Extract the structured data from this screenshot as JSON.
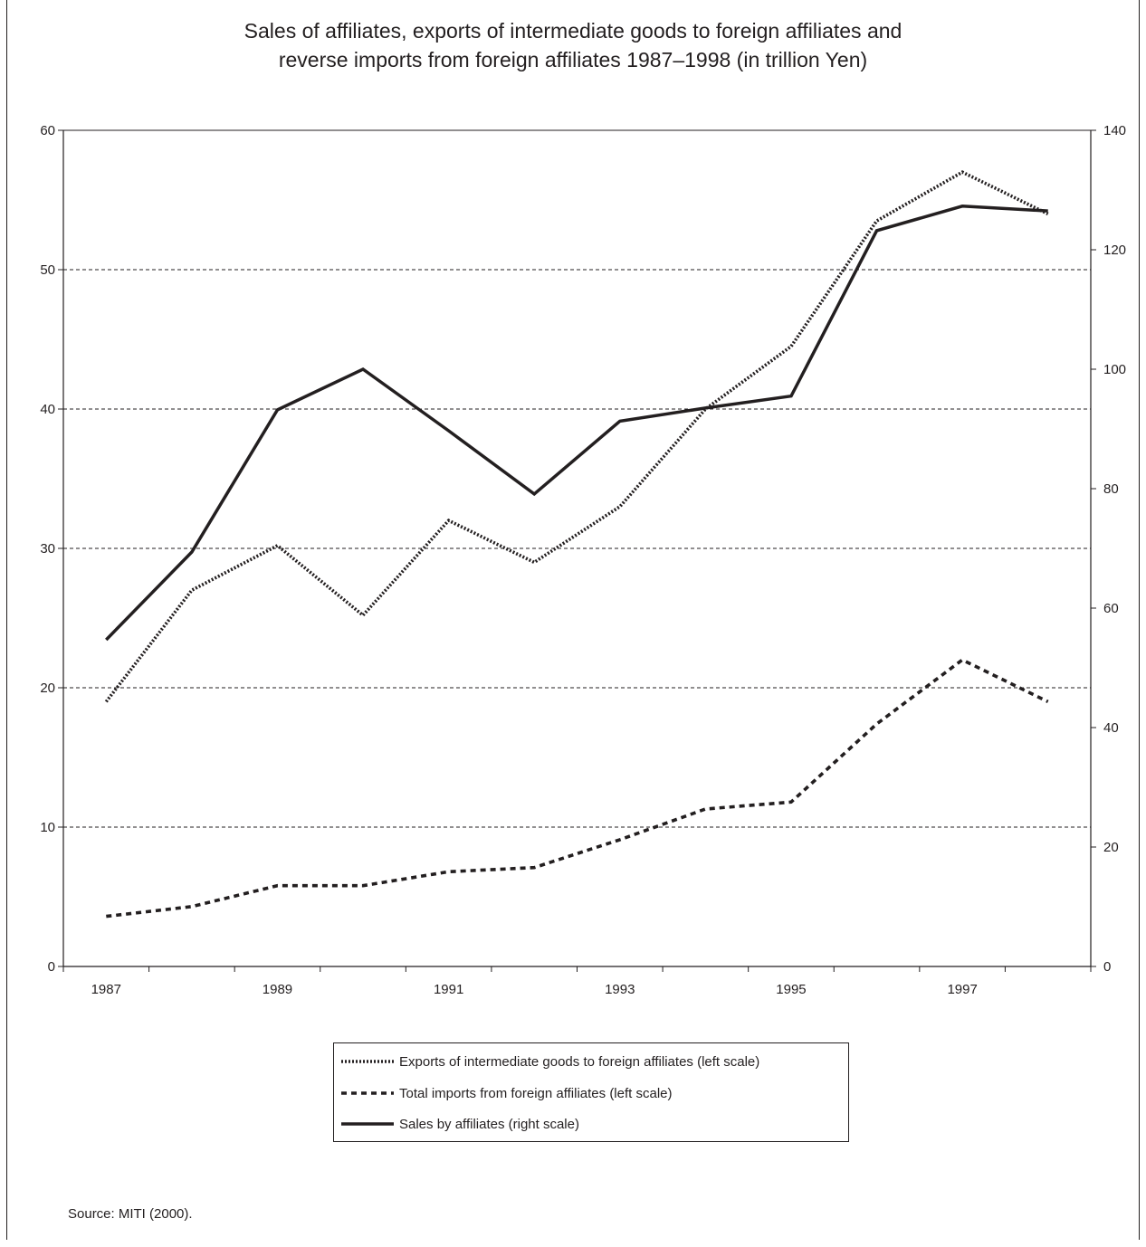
{
  "chart_data": {
    "type": "line",
    "title_lines": [
      "Sales of affiliates, exports of intermediate goods to foreign affiliates and",
      "reverse imports from foreign affiliates 1987–1998 (in trillion Yen)"
    ],
    "x": [
      1987,
      1988,
      1989,
      1990,
      1991,
      1992,
      1993,
      1994,
      1995,
      1996,
      1997,
      1998
    ],
    "x_tick_labels": [
      "1987",
      "1989",
      "1991",
      "1993",
      "1995",
      "1997"
    ],
    "xlim": [
      1986.5,
      1998.5
    ],
    "y_left": {
      "ticks": [
        0,
        10,
        20,
        30,
        40,
        50,
        60
      ],
      "ylim": [
        0,
        60
      ]
    },
    "y_right": {
      "ticks": [
        0,
        20,
        40,
        60,
        80,
        100,
        120,
        140
      ],
      "ylim": [
        0,
        140
      ]
    },
    "grid": "horizontal dashed",
    "legend_position": "bottom",
    "series": [
      {
        "name": "Exports of intermediate goods to foreign affiliates (left scale)",
        "axis": "left",
        "style": "dotted",
        "values": [
          19,
          27,
          30.2,
          25.2,
          32,
          29,
          33,
          40,
          44.5,
          53.5,
          57,
          54
        ]
      },
      {
        "name": "Total imports from foreign affiliates (left scale)",
        "axis": "left",
        "style": "dashed",
        "values": [
          3.6,
          4.3,
          5.8,
          5.8,
          6.8,
          7.1,
          9.1,
          11.3,
          11.8,
          17.4,
          22,
          19
        ]
      },
      {
        "name": "Sales by affiliates (right scale)",
        "axis": "right",
        "style": "solid",
        "values": [
          54.7,
          69.4,
          93.2,
          100,
          89.7,
          79.1,
          91.3,
          93.5,
          95.5,
          123.2,
          127.3,
          126.5
        ]
      }
    ],
    "line_color": "#231f20"
  },
  "source": "Source: MITI (2000)."
}
